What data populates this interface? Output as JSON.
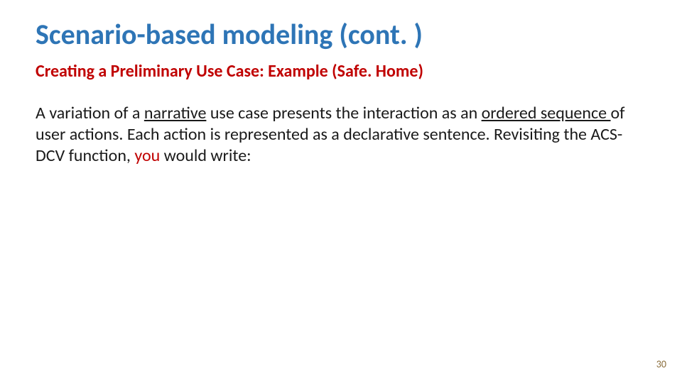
{
  "colors": {
    "title": "#2e75b6",
    "subtitle": "#c00000",
    "body": "#1a1a1a",
    "highlight": "#c00000",
    "pageNumber": "#8a6d3b",
    "background": "#ffffff"
  },
  "fonts": {
    "titleSize": 40,
    "subtitleSize": 24,
    "bodySize": 24,
    "pageNumberSize": 14,
    "titleWeight": 700,
    "subtitleWeight": 600,
    "bodyWeight": 400
  },
  "title": "Scenario-based modeling (cont. )",
  "subtitle": "Creating a Preliminary Use Case: Example (Safe. Home)",
  "body": {
    "t1": "A variation of a ",
    "narrative": "narrative",
    "t2": " use case presents the interaction as an ",
    "orderedSequence": "ordered sequence ",
    "t3": "of user actions. Each action is represented as a declarative sentence. Revisiting the ACS-DCV function, ",
    "you": "you",
    "t4": " would write:"
  },
  "pageNumber": "30"
}
